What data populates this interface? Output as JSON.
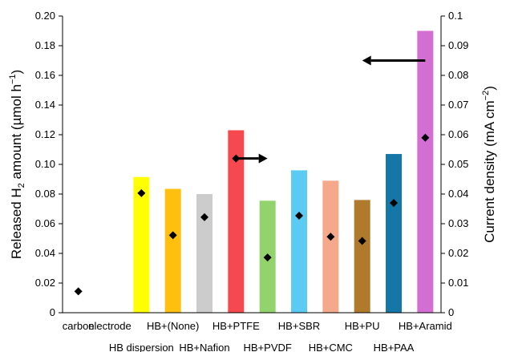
{
  "chart_data": {
    "type": "bar",
    "categories": [
      "carbon",
      "electrode",
      "HB dispersion",
      "HB+(None)",
      "HB+Nafion",
      "HB+PTFE",
      "HB+PVDF",
      "HB+SBR",
      "HB+CMC",
      "HB+PU",
      "HB+PAA",
      "HB+Aramid"
    ],
    "series": [
      {
        "name": "Released H2 amount",
        "axis": "left",
        "style": "bar",
        "values": [
          null,
          null,
          0.0915,
          0.0835,
          0.08,
          0.123,
          0.0755,
          0.096,
          0.089,
          0.076,
          0.107,
          0.19
        ],
        "colors": [
          "#ffffff",
          "#ffffff",
          "#ffff00",
          "#ffbf0f",
          "#cccccc",
          "#f5494f",
          "#92d36e",
          "#5ccbf4",
          "#f4a98a",
          "#b07a2d",
          "#1577a8",
          "#d36fd3"
        ]
      },
      {
        "name": "Current density",
        "axis": "right",
        "style": "diamond",
        "values": [
          0.0072,
          null,
          0.0403,
          0.0261,
          0.0322,
          0.052,
          0.0186,
          0.0327,
          0.0256,
          0.0242,
          0.037,
          0.059
        ]
      }
    ],
    "categories_row": [
      0,
      0,
      1,
      0,
      1,
      0,
      1,
      0,
      1,
      0,
      1,
      0
    ],
    "left_axis": {
      "label_parts": [
        "Released H",
        "2",
        " amount (µmol h",
        "−1",
        ")"
      ],
      "ylim": [
        0,
        0.2
      ],
      "ticks": [
        "0",
        "0.02",
        "0.04",
        "0.06",
        "0.08",
        "0.10",
        "0.12",
        "0.14",
        "0.16",
        "0.18",
        "0.20"
      ]
    },
    "right_axis": {
      "label_parts": [
        "Current density (mA cm",
        "−2",
        ")"
      ],
      "ylim": [
        0,
        0.1
      ],
      "ticks": [
        "0",
        "0.01",
        "0.02",
        "0.03",
        "0.04",
        "0.05",
        "0.06",
        "0.07",
        "0.08",
        "0.09",
        "0.1"
      ]
    },
    "arrows": [
      {
        "points_to": "right",
        "x_from_category": 5,
        "x_to_category": 6,
        "y_right": 0.052
      },
      {
        "points_to": "left",
        "x_from_category": 11,
        "x_to_category": 9,
        "y_left": 0.17
      }
    ],
    "colors": {
      "marker": "#000000",
      "axis": "#000000"
    }
  }
}
